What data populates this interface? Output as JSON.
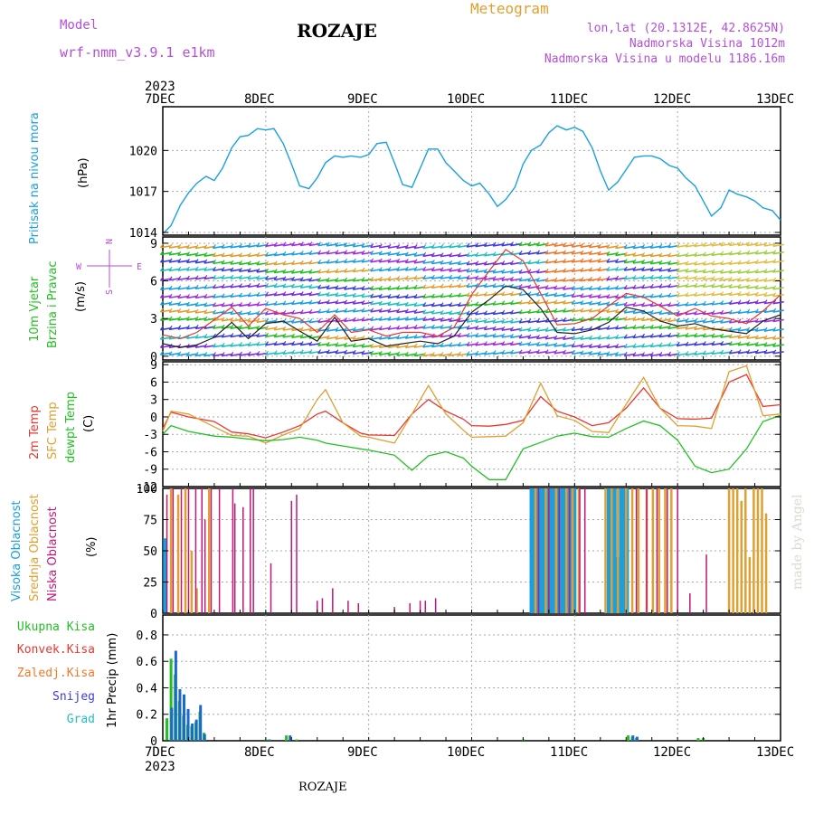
{
  "header": {
    "model_label": "Model",
    "model_name": "wrf-nmm_v3.9.1 e1km",
    "station": "ROZAJE",
    "meteogram": "Meteogram",
    "lonlat": "lon,lat (20.1312E, 42.8625N)",
    "elevation": "Nadmorska Visina 1012m",
    "model_elevation": "Nadmorska Visina u modelu 1186.16m",
    "footer_station": "ROZAJE",
    "watermark": "made by Angel"
  },
  "colors": {
    "pressure": "#1aa0e0",
    "t2m": "#e8372f",
    "sfc": "#e0a030",
    "dew": "#22c022",
    "cloud_high": "#1aa0e0",
    "cloud_mid": "#e0a030",
    "cloud_low": "#c01878",
    "grid": "#a8a8a8",
    "violet": "#b44fd8"
  },
  "chart_data": [
    {
      "panel": "pressure",
      "type": "line",
      "ylabel_name": "Pritisak na nivou mora",
      "ylabel_unit": "(hPa)",
      "ylim": [
        1013.8,
        1023.2
      ],
      "yticks": [
        1014,
        1017,
        1020
      ],
      "x_dates": [
        "7DEC",
        "8DEC",
        "9DEC",
        "10DEC",
        "11DEC",
        "12DEC",
        "13DEC"
      ],
      "year": "2023",
      "series": [
        {
          "color_key": "pressure",
          "x": [
            0,
            0.08,
            0.17,
            0.25,
            0.33,
            0.42,
            0.5,
            0.58,
            0.67,
            0.75,
            0.83,
            0.92,
            1,
            1.08,
            1.17,
            1.25,
            1.33,
            1.42,
            1.5,
            1.58,
            1.67,
            1.75,
            1.83,
            1.92,
            2,
            2.08,
            2.17,
            2.25,
            2.33,
            2.42,
            2.5,
            2.58,
            2.67,
            2.75,
            2.83,
            2.92,
            3,
            3.08,
            3.17,
            3.25,
            3.33,
            3.42,
            3.5,
            3.58,
            3.67,
            3.75,
            3.83,
            3.92,
            4,
            4.08,
            4.17,
            4.25,
            4.33,
            4.42,
            4.5,
            4.58,
            4.67,
            4.75,
            4.83,
            4.92,
            5,
            5.08,
            5.17,
            5.25,
            5.33,
            5.42,
            5.5,
            5.58,
            5.67,
            5.75,
            5.83,
            5.92,
            6
          ],
          "y": [
            1013.9,
            1014.5,
            1016.0,
            1016.9,
            1017.6,
            1018.1,
            1017.8,
            1018.7,
            1020.2,
            1021.0,
            1021.1,
            1021.6,
            1021.5,
            1021.6,
            1020.5,
            1019.0,
            1017.4,
            1017.2,
            1018.0,
            1019.1,
            1019.6,
            1019.5,
            1019.6,
            1019.5,
            1019.7,
            1020.5,
            1020.6,
            1019.1,
            1017.5,
            1017.3,
            1018.7,
            1020.1,
            1020.1,
            1019.1,
            1018.5,
            1017.8,
            1017.4,
            1017.6,
            1016.8,
            1015.9,
            1016.4,
            1017.3,
            1019.0,
            1020.0,
            1020.4,
            1021.3,
            1021.8,
            1021.5,
            1021.7,
            1021.4,
            1020.2,
            1018.5,
            1017.1,
            1017.7,
            1018.6,
            1019.5,
            1019.6,
            1019.6,
            1019.4,
            1018.9,
            1018.7,
            1018.0,
            1017.4,
            1016.3,
            1015.2,
            1015.8,
            1017.1,
            1016.8,
            1016.6,
            1016.3,
            1015.8,
            1015.6,
            1014.9
          ]
        }
      ]
    },
    {
      "panel": "wind",
      "type": "line",
      "ylabel_name": "10m Vjetar",
      "ylabel_name2": "Brzina i Pravac",
      "ylabel_unit": "(m/s)",
      "compass": [
        "N",
        "S",
        "W",
        "E"
      ],
      "ylim": [
        -0.3,
        9.5
      ],
      "yticks": [
        0,
        3,
        6,
        9
      ],
      "series": [
        {
          "name": "speed",
          "color": "#222222",
          "x": [
            0,
            0.17,
            0.33,
            0.5,
            0.67,
            0.83,
            1,
            1.17,
            1.33,
            1.5,
            1.67,
            1.83,
            2,
            2.17,
            2.33,
            2.5,
            2.67,
            2.83,
            3,
            3.17,
            3.33,
            3.5,
            3.67,
            3.83,
            4,
            4.17,
            4.33,
            4.5,
            4.67,
            4.83,
            5,
            5.17,
            5.33,
            5.5,
            5.67,
            5.83,
            6
          ],
          "y": [
            1.0,
            0.7,
            0.9,
            1.5,
            2.7,
            1.4,
            2.6,
            2.8,
            2.0,
            1.2,
            3.1,
            1.2,
            1.4,
            0.8,
            1.0,
            1.2,
            1.0,
            1.6,
            3.5,
            4.5,
            5.6,
            5.3,
            3.8,
            1.9,
            1.8,
            2.1,
            2.7,
            3.9,
            3.6,
            2.8,
            2.4,
            2.6,
            2.2,
            2.0,
            1.8,
            2.8,
            3.3
          ]
        },
        {
          "name": "gust",
          "color": "#e8372f",
          "x": [
            0,
            0.17,
            0.33,
            0.5,
            0.67,
            0.83,
            1,
            1.17,
            1.33,
            1.5,
            1.67,
            1.83,
            2,
            2.17,
            2.33,
            2.5,
            2.67,
            2.83,
            3,
            3.17,
            3.33,
            3.5,
            3.67,
            3.83,
            4,
            4.17,
            4.33,
            4.5,
            4.67,
            4.83,
            5,
            5.17,
            5.33,
            5.5,
            5.67,
            5.83,
            6
          ],
          "y": [
            1.7,
            1.4,
            1.9,
            2.9,
            3.9,
            2.4,
            3.8,
            3.3,
            3.0,
            1.9,
            3.3,
            1.9,
            2.1,
            1.6,
            1.9,
            1.9,
            1.6,
            2.3,
            4.9,
            6.8,
            8.5,
            7.6,
            5.0,
            2.5,
            2.6,
            3.0,
            4.0,
            5.0,
            4.7,
            4.0,
            3.2,
            3.8,
            3.2,
            3.0,
            2.6,
            3.6,
            4.9
          ]
        }
      ]
    },
    {
      "panel": "temperature",
      "type": "line",
      "ylabel_t2m": "2m Temp",
      "ylabel_sfc": "SFC Temp",
      "ylabel_dew": "dewpt Temp",
      "ylabel_unit": "(C)",
      "ylim": [
        -12,
        9.5
      ],
      "yticks": [
        -12,
        -9,
        -6,
        -3,
        0,
        3,
        6,
        9
      ],
      "series": [
        {
          "color_key": "t2m",
          "x": [
            0,
            0.08,
            0.25,
            0.5,
            0.67,
            0.83,
            1,
            1.17,
            1.33,
            1.5,
            1.58,
            1.75,
            1.92,
            2,
            2.25,
            2.42,
            2.58,
            2.75,
            2.92,
            3,
            3.17,
            3.33,
            3.5,
            3.67,
            3.83,
            4,
            4.17,
            4.33,
            4.5,
            4.67,
            4.83,
            5,
            5.17,
            5.33,
            5.5,
            5.67,
            5.83,
            6
          ],
          "y": [
            -2.0,
            0.8,
            0.0,
            -0.8,
            -2.6,
            -2.9,
            -3.6,
            -2.6,
            -1.5,
            0.5,
            1.0,
            -1.0,
            -2.8,
            -3.1,
            -3.2,
            0.5,
            3.0,
            1.0,
            -0.4,
            -1.5,
            -1.6,
            -1.3,
            -0.6,
            3.5,
            1.0,
            0.0,
            -1.5,
            -1.0,
            1.5,
            5.0,
            1.5,
            -0.3,
            -0.4,
            -0.2,
            6.0,
            7.3,
            1.8,
            2.1
          ]
        },
        {
          "color_key": "sfc",
          "x": [
            0,
            0.08,
            0.25,
            0.5,
            0.67,
            0.83,
            1,
            1.17,
            1.33,
            1.5,
            1.58,
            1.75,
            1.92,
            2,
            2.25,
            2.42,
            2.58,
            2.75,
            2.92,
            3,
            3.17,
            3.33,
            3.5,
            3.67,
            3.83,
            4,
            4.17,
            4.33,
            4.5,
            4.67,
            4.83,
            5,
            5.17,
            5.33,
            5.5,
            5.67,
            5.83,
            6
          ],
          "y": [
            -2.5,
            1.0,
            0.5,
            -1.7,
            -3.2,
            -3.3,
            -4.5,
            -3.1,
            -2.0,
            3.0,
            4.7,
            -1.0,
            -3.3,
            -3.5,
            -4.5,
            0.5,
            5.4,
            0.5,
            -2.3,
            -3.5,
            -3.4,
            -3.3,
            -1.0,
            5.8,
            0.2,
            -0.6,
            -2.5,
            -2.7,
            2.2,
            6.8,
            1.5,
            -1.5,
            -1.6,
            -2.0,
            7.8,
            8.8,
            0.2,
            0.5
          ]
        },
        {
          "color_key": "dew",
          "x": [
            0,
            0.08,
            0.25,
            0.5,
            0.67,
            0.83,
            1,
            1.17,
            1.33,
            1.5,
            1.58,
            1.75,
            1.92,
            2,
            2.25,
            2.42,
            2.58,
            2.75,
            2.92,
            3,
            3.17,
            3.33,
            3.5,
            3.67,
            3.83,
            4,
            4.17,
            4.33,
            4.5,
            4.67,
            4.83,
            5,
            5.17,
            5.33,
            5.5,
            5.67,
            5.83,
            6
          ],
          "y": [
            -3.0,
            -1.5,
            -2.5,
            -3.3,
            -3.5,
            -3.8,
            -4.1,
            -3.9,
            -3.5,
            -4.0,
            -4.5,
            -5.0,
            -5.5,
            -5.7,
            -6.6,
            -9.2,
            -6.7,
            -6.0,
            -7.1,
            -8.5,
            -10.8,
            -10.8,
            -5.5,
            -4.4,
            -3.3,
            -2.8,
            -3.4,
            -3.5,
            -2.0,
            -0.7,
            -1.5,
            -4.0,
            -8.5,
            -9.6,
            -9.0,
            -5.5,
            -0.8,
            0.3
          ]
        }
      ]
    },
    {
      "panel": "clouds",
      "type": "bar",
      "ylabel_high": "Visoka Oblacnost",
      "ylabel_mid": "Srednja Oblacnost",
      "ylabel_low": "Niska Oblacnost",
      "ylabel_unit": "(%)",
      "ylim": [
        0,
        100
      ],
      "yticks": [
        0,
        25,
        50,
        75,
        100
      ],
      "high": [
        [
          0.02,
          60
        ],
        [
          3.58,
          100
        ],
        [
          3.61,
          100
        ],
        [
          3.64,
          100
        ],
        [
          3.67,
          100
        ],
        [
          3.7,
          100
        ],
        [
          3.73,
          100
        ],
        [
          3.76,
          100
        ],
        [
          3.79,
          100
        ],
        [
          3.82,
          100
        ],
        [
          3.85,
          100
        ],
        [
          3.88,
          100
        ],
        [
          3.91,
          100
        ],
        [
          3.94,
          100
        ],
        [
          3.97,
          100
        ],
        [
          4.0,
          100
        ],
        [
          4.33,
          100
        ],
        [
          4.36,
          100
        ],
        [
          4.39,
          100
        ],
        [
          4.42,
          45
        ],
        [
          4.45,
          100
        ],
        [
          4.48,
          100
        ],
        [
          4.51,
          100
        ]
      ],
      "mid": [
        [
          0.08,
          100
        ],
        [
          0.15,
          95
        ],
        [
          0.22,
          100
        ],
        [
          0.28,
          50
        ],
        [
          0.33,
          20
        ],
        [
          0.45,
          100
        ],
        [
          3.62,
          100
        ],
        [
          3.72,
          100
        ],
        [
          3.82,
          100
        ],
        [
          3.92,
          100
        ],
        [
          3.98,
          100
        ],
        [
          4.04,
          100
        ],
        [
          4.3,
          100
        ],
        [
          4.36,
          100
        ],
        [
          4.42,
          100
        ],
        [
          4.5,
          100
        ],
        [
          4.56,
          100
        ],
        [
          4.62,
          100
        ],
        [
          4.7,
          100
        ],
        [
          4.76,
          100
        ],
        [
          4.82,
          100
        ],
        [
          4.88,
          100
        ],
        [
          4.94,
          100
        ],
        [
          5.5,
          100
        ],
        [
          5.54,
          100
        ],
        [
          5.58,
          100
        ],
        [
          5.62,
          90
        ],
        [
          5.66,
          100
        ],
        [
          5.7,
          45
        ],
        [
          5.74,
          100
        ],
        [
          5.78,
          100
        ],
        [
          5.82,
          100
        ],
        [
          5.86,
          80
        ]
      ],
      "low": [
        [
          0.04,
          95
        ],
        [
          0.1,
          100
        ],
        [
          0.18,
          100
        ],
        [
          0.25,
          100
        ],
        [
          0.32,
          100
        ],
        [
          0.38,
          100
        ],
        [
          0.41,
          75
        ],
        [
          0.47,
          100
        ],
        [
          0.55,
          100
        ],
        [
          0.68,
          100
        ],
        [
          0.7,
          88
        ],
        [
          0.78,
          85
        ],
        [
          0.85,
          100
        ],
        [
          0.88,
          100
        ],
        [
          1.05,
          40
        ],
        [
          1.25,
          90
        ],
        [
          1.3,
          95
        ],
        [
          1.5,
          10
        ],
        [
          1.55,
          12
        ],
        [
          1.65,
          20
        ],
        [
          1.8,
          10
        ],
        [
          1.9,
          8
        ],
        [
          2.25,
          5
        ],
        [
          2.4,
          8
        ],
        [
          2.5,
          10
        ],
        [
          2.55,
          10
        ],
        [
          2.65,
          12
        ],
        [
          3.65,
          100
        ],
        [
          3.75,
          100
        ],
        [
          3.85,
          100
        ],
        [
          3.95,
          100
        ],
        [
          4.05,
          100
        ],
        [
          4.1,
          100
        ],
        [
          4.6,
          100
        ],
        [
          4.7,
          100
        ],
        [
          4.8,
          100
        ],
        [
          4.9,
          100
        ],
        [
          5.0,
          100
        ],
        [
          5.12,
          16
        ],
        [
          5.28,
          47
        ]
      ]
    },
    {
      "panel": "precip",
      "type": "bar",
      "ylabel_name": "1hr Precip (mm)",
      "legend": [
        "Ukupna Kisa",
        "Konvek.Kisa",
        "Zaledj.Kisa",
        "Snijeg",
        "Grad"
      ],
      "ylim": [
        0,
        0.95
      ],
      "yticks": [
        0,
        0.2,
        0.4,
        0.6,
        0.8
      ],
      "rain": [
        [
          0.04,
          0.17
        ],
        [
          0.08,
          0.62
        ],
        [
          0.12,
          0.5
        ],
        [
          0.16,
          0.3
        ],
        [
          0.2,
          0.19
        ],
        [
          0.24,
          0.12
        ],
        [
          0.28,
          0.11
        ],
        [
          0.32,
          0.14
        ],
        [
          0.36,
          0.22
        ],
        [
          0.4,
          0.06
        ],
        [
          1.0,
          0.01
        ],
        [
          1.2,
          0.04
        ],
        [
          1.3,
          0.01
        ],
        [
          3.5,
          0.01
        ],
        [
          4.52,
          0.04
        ],
        [
          4.56,
          0.03
        ],
        [
          4.6,
          0.02
        ],
        [
          5.2,
          0.02
        ],
        [
          5.25,
          0.02
        ]
      ],
      "snow": [
        [
          0.06,
          0.25
        ],
        [
          0.1,
          0.68
        ],
        [
          0.14,
          0.39
        ],
        [
          0.18,
          0.35
        ],
        [
          0.22,
          0.24
        ],
        [
          0.26,
          0.13
        ],
        [
          0.3,
          0.16
        ],
        [
          0.34,
          0.27
        ],
        [
          0.38,
          0.05
        ],
        [
          1.01,
          0.01
        ],
        [
          1.21,
          0.04
        ],
        [
          4.54,
          0.04
        ],
        [
          4.58,
          0.03
        ]
      ]
    }
  ]
}
